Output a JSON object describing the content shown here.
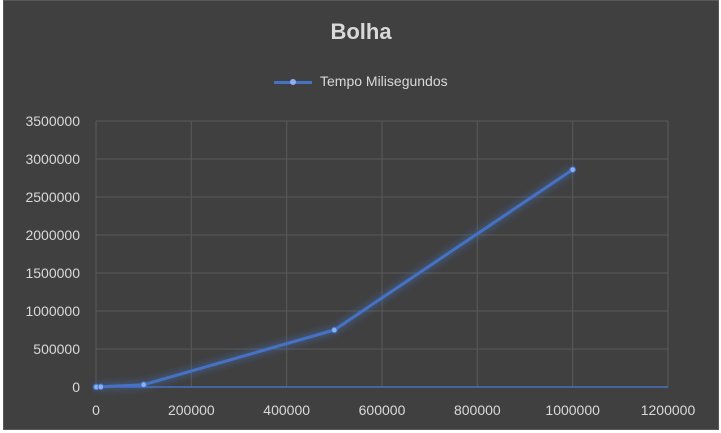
{
  "chart_data": {
    "type": "scatter",
    "title": "Bolha",
    "xlabel": "",
    "ylabel": "",
    "xlim": [
      0,
      1200000
    ],
    "ylim": [
      0,
      3500000
    ],
    "x_ticks": [
      "0",
      "200000",
      "400000",
      "600000",
      "800000",
      "1000000",
      "1200000"
    ],
    "y_ticks": [
      "0",
      "500000",
      "1000000",
      "1500000",
      "2000000",
      "2500000",
      "3000000",
      "3500000"
    ],
    "grid": true,
    "legend": "top",
    "series": [
      {
        "name": "Tempo Milisegundos",
        "color": "#4472c4",
        "points": [
          {
            "x": 0,
            "y": 0
          },
          {
            "x": 1000,
            "y": 100
          },
          {
            "x": 10000,
            "y": 2000
          },
          {
            "x": 100000,
            "y": 30000
          },
          {
            "x": 500000,
            "y": 750000
          },
          {
            "x": 1000000,
            "y": 2860000
          }
        ]
      }
    ]
  }
}
